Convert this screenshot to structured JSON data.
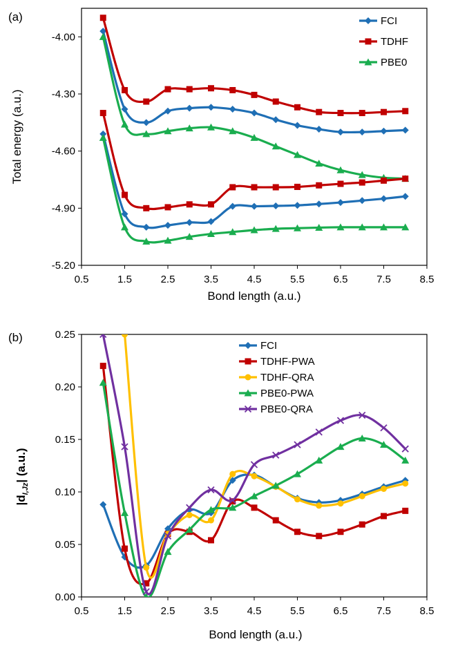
{
  "chart_data": [
    {
      "type": "line",
      "panel_label": "(a)",
      "title": "",
      "xlabel": "Bond length (a.u.)",
      "ylabel": "Total energy (a.u.)",
      "xlim": [
        0.5,
        8.5
      ],
      "ylim": [
        -5.2,
        -3.85
      ],
      "xticks": [
        "0.5",
        "1.5",
        "2.5",
        "3.5",
        "4.5",
        "5.5",
        "6.5",
        "7.5",
        "8.5"
      ],
      "yticks": [
        "-4.00",
        "-4.30",
        "-4.60",
        "-4.90",
        "-5.20"
      ],
      "grid": false,
      "legend_position": "top-right",
      "legend": [
        "FCI",
        "TDHF",
        "PBE0"
      ],
      "x": [
        1.0,
        1.5,
        2.0,
        2.5,
        3.0,
        3.5,
        4.0,
        4.5,
        5.0,
        5.5,
        6.0,
        6.5,
        7.0,
        7.5,
        8.0
      ],
      "series": [
        {
          "name": "FCI",
          "group": "FCI",
          "color": "#1f6fb5",
          "marker": "diamond",
          "values": [
            -3.97,
            -4.38,
            -4.45,
            -4.39,
            -4.375,
            -4.37,
            -4.38,
            -4.4,
            -4.435,
            -4.465,
            -4.485,
            -4.5,
            -4.5,
            -4.495,
            -4.49
          ]
        },
        {
          "name": "TDHF",
          "group": "TDHF",
          "color": "#c00000",
          "marker": "square",
          "values": [
            -3.9,
            -4.28,
            -4.34,
            -4.275,
            -4.275,
            -4.27,
            -4.28,
            -4.305,
            -4.34,
            -4.37,
            -4.395,
            -4.4,
            -4.4,
            -4.395,
            -4.39
          ]
        },
        {
          "name": "PBE0",
          "group": "PBE0",
          "color": "#1aad4f",
          "marker": "triangle",
          "values": [
            -4.0,
            -4.46,
            -4.51,
            -4.495,
            -4.48,
            -4.475,
            -4.495,
            -4.53,
            -4.575,
            -4.62,
            -4.665,
            -4.7,
            -4.725,
            -4.74,
            -4.745
          ]
        },
        {
          "name": "",
          "group": "FCI",
          "color": "#1f6fb5",
          "marker": "diamond",
          "values": [
            -4.51,
            -4.93,
            -5.0,
            -4.99,
            -4.975,
            -4.97,
            -4.89,
            -4.89,
            -4.888,
            -4.885,
            -4.878,
            -4.87,
            -4.86,
            -4.85,
            -4.838
          ]
        },
        {
          "name": "",
          "group": "TDHF",
          "color": "#c00000",
          "marker": "square",
          "values": [
            -4.4,
            -4.83,
            -4.9,
            -4.895,
            -4.88,
            -4.88,
            -4.79,
            -4.79,
            -4.79,
            -4.788,
            -4.78,
            -4.772,
            -4.765,
            -4.755,
            -4.745
          ]
        },
        {
          "name": "",
          "group": "PBE0",
          "color": "#1aad4f",
          "marker": "triangle",
          "values": [
            -4.53,
            -5.0,
            -5.075,
            -5.07,
            -5.05,
            -5.035,
            -5.025,
            -5.015,
            -5.008,
            -5.005,
            -5.002,
            -5.0,
            -5.0,
            -5.0,
            -5.0
          ]
        }
      ]
    },
    {
      "type": "line",
      "panel_label": "(b)",
      "title": "",
      "xlabel": "Bond length (a.u.)",
      "ylabel_main": "|d",
      "ylabel_sub": "I,Jz",
      "ylabel_tail": "| (a.u.)",
      "xlim": [
        0.5,
        8.5
      ],
      "ylim": [
        0.0,
        0.25
      ],
      "xticks": [
        "0.5",
        "1.5",
        "2.5",
        "3.5",
        "4.5",
        "5.5",
        "6.5",
        "7.5",
        "8.5"
      ],
      "yticks": [
        "0.00",
        "0.05",
        "0.10",
        "0.15",
        "0.20",
        "0.25"
      ],
      "grid": false,
      "legend_position": "top-center",
      "legend": [
        "FCI",
        "TDHF-PWA",
        "TDHF-QRA",
        "PBE0-PWA",
        "PBE0-QRA"
      ],
      "x": [
        1.0,
        1.5,
        2.0,
        2.5,
        3.0,
        3.5,
        4.0,
        4.5,
        5.0,
        5.5,
        6.0,
        6.5,
        7.0,
        7.5,
        8.0
      ],
      "series": [
        {
          "name": "FCI",
          "color": "#1f6fb5",
          "marker": "diamond",
          "values": [
            0.088,
            0.038,
            0.03,
            0.065,
            0.083,
            0.08,
            0.111,
            0.116,
            0.105,
            0.094,
            0.09,
            0.092,
            0.098,
            0.105,
            0.111
          ]
        },
        {
          "name": "TDHF-PWA",
          "color": "#c00000",
          "marker": "square",
          "values": [
            0.22,
            0.046,
            0.013,
            0.06,
            0.062,
            0.054,
            0.091,
            0.085,
            0.073,
            0.062,
            0.058,
            0.062,
            0.069,
            0.077,
            0.082
          ]
        },
        {
          "name": "TDHF-QRA",
          "color": "#ffc000",
          "marker": "circle",
          "values": [
            null,
            0.25,
            0.028,
            0.06,
            0.078,
            0.073,
            0.117,
            0.115,
            0.105,
            0.093,
            0.087,
            0.089,
            0.096,
            0.103,
            0.108
          ]
        },
        {
          "name": "PBE0-PWA",
          "color": "#1aad4f",
          "marker": "triangle",
          "values": [
            0.204,
            0.08,
            0.0,
            0.043,
            0.064,
            0.083,
            0.085,
            0.096,
            0.106,
            0.117,
            0.13,
            0.143,
            0.151,
            0.145,
            0.13
          ]
        },
        {
          "name": "PBE0-QRA",
          "color": "#7030a0",
          "marker": "x",
          "values": [
            0.25,
            0.143,
            0.005,
            0.058,
            0.085,
            0.102,
            0.092,
            0.126,
            0.135,
            0.145,
            0.157,
            0.168,
            0.173,
            0.161,
            0.141
          ]
        }
      ]
    }
  ]
}
